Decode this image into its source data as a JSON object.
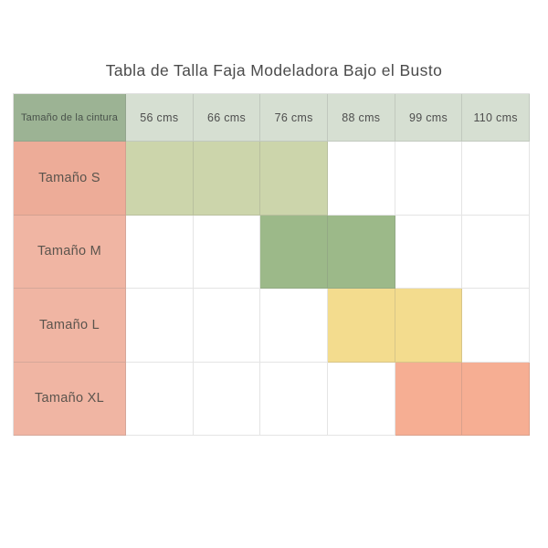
{
  "page": {
    "title": "Tabla de Talla Faja Modeladora Bajo el Busto"
  },
  "table": {
    "header": {
      "label": "Tamaño de la cintura",
      "columns": [
        "56 cms",
        "66 cms",
        "76 cms",
        "88 cms",
        "99 cms",
        "110 cms"
      ]
    },
    "rows": [
      {
        "label": "Tamaño S",
        "highlighted_columns": [
          "56 cms",
          "66 cms",
          "76 cms"
        ]
      },
      {
        "label": "Tamaño M",
        "highlighted_columns": [
          "76 cms",
          "88 cms"
        ]
      },
      {
        "label": "Tamaño L",
        "highlighted_columns": [
          "88 cms",
          "99 cms"
        ]
      },
      {
        "label": "Tamaño XL",
        "highlighted_columns": [
          "99 cms",
          "110 cms"
        ]
      }
    ]
  },
  "colors": {
    "header_label_bg": "#9cb394",
    "header_col_bg": "#d6dfd2",
    "row_label_s_bg": "#edac98",
    "row_label_bg": "#f0b5a3",
    "size_s_cell": "#ccd5ab",
    "size_m_cell": "#9cb989",
    "size_l_cell": "#f3dc8e",
    "size_xl_cell": "#f6ae93",
    "empty_cell": "#ffffff",
    "gridline": "#e0e0e0",
    "title_text": "#4b4b4b"
  }
}
